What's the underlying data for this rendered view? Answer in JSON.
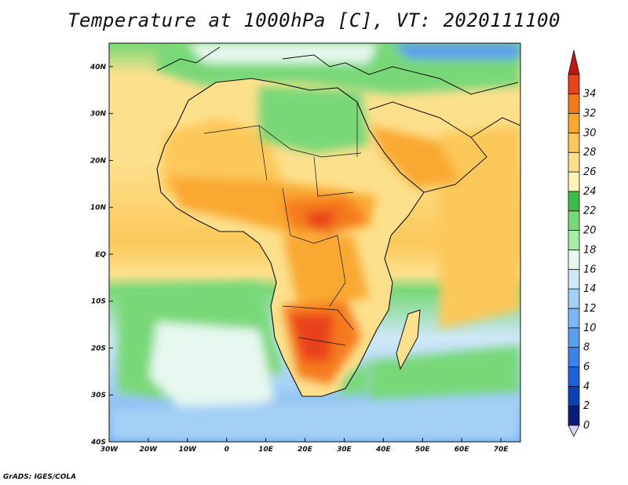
{
  "title": "Temperature at 1000hPa [C], VT: 2020111100",
  "credit": "GrADS: IGES/COLA",
  "map": {
    "projection": "latlon",
    "lon_range": [
      -30,
      75
    ],
    "lat_range": [
      -40,
      45
    ],
    "lon_ticks": [
      {
        "value": -30,
        "label": "30W"
      },
      {
        "value": -20,
        "label": "20W"
      },
      {
        "value": -10,
        "label": "10W"
      },
      {
        "value": 0,
        "label": "0"
      },
      {
        "value": 10,
        "label": "10E"
      },
      {
        "value": 20,
        "label": "20E"
      },
      {
        "value": 30,
        "label": "30E"
      },
      {
        "value": 40,
        "label": "40E"
      },
      {
        "value": 50,
        "label": "50E"
      },
      {
        "value": 60,
        "label": "60E"
      },
      {
        "value": 70,
        "label": "70E"
      }
    ],
    "lat_ticks": [
      {
        "value": 40,
        "label": "40N"
      },
      {
        "value": 30,
        "label": "30N"
      },
      {
        "value": 20,
        "label": "20N"
      },
      {
        "value": 10,
        "label": "10N"
      },
      {
        "value": 0,
        "label": "EQ"
      },
      {
        "value": -10,
        "label": "10S"
      },
      {
        "value": -20,
        "label": "20S"
      },
      {
        "value": -30,
        "label": "30S"
      },
      {
        "value": -40,
        "label": "40S"
      }
    ]
  },
  "colorbar": {
    "levels": [
      "0",
      "2",
      "4",
      "6",
      "8",
      "10",
      "12",
      "14",
      "16",
      "18",
      "20",
      "22",
      "24",
      "26",
      "28",
      "30",
      "32",
      "34"
    ],
    "colors": [
      "#0a1a78",
      "#0f3fb4",
      "#1f5fd8",
      "#3c82e8",
      "#5a9ef0",
      "#7ab8f4",
      "#a4d0f6",
      "#cfe8f8",
      "#e6f8f0",
      "#a8ecaa",
      "#78d878",
      "#3cbe46",
      "#fff4b4",
      "#fde08c",
      "#fcc85a",
      "#f9a830",
      "#f57a1e",
      "#e8421a",
      "#c01810"
    ],
    "under_color": "#d8d4f8"
  }
}
